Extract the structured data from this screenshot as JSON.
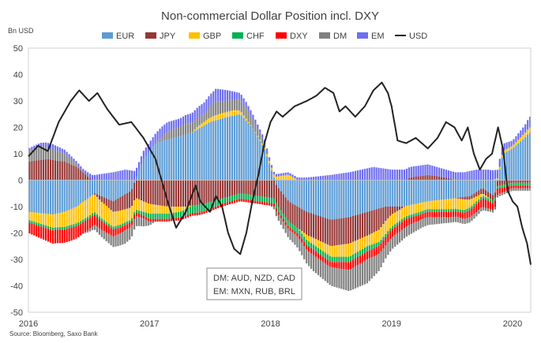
{
  "chart_data": {
    "type": "bar",
    "stacked": true,
    "title": "Non-commercial Dollar Position incl. DXY",
    "ylabel": "Bn USD",
    "xlabel": "",
    "ylim": [
      -50,
      50
    ],
    "yticks": [
      -50,
      -40,
      -30,
      -20,
      -10,
      0,
      10,
      20,
      30,
      40,
      50
    ],
    "xlim": [
      2016.0,
      2020.15
    ],
    "xticks": [
      "2016",
      "2017",
      "2018",
      "2019",
      "2020"
    ],
    "grid": false,
    "legend": "top",
    "source": "Source: Bloomberg, Saxo Bank",
    "annotation": [
      "DM: AUD, NZD, CAD",
      "EM: MXN, RUB, BRL"
    ],
    "series": [
      {
        "name": "EUR",
        "type": "bar",
        "color": "#5B9BD5",
        "keyframes": [
          [
            2016.0,
            -12
          ],
          [
            2016.2,
            -13
          ],
          [
            2016.3,
            -12
          ],
          [
            2016.4,
            -10
          ],
          [
            2016.55,
            -5
          ],
          [
            2016.7,
            -8
          ],
          [
            2016.85,
            -4
          ],
          [
            2016.95,
            8
          ],
          [
            2017.05,
            14
          ],
          [
            2017.2,
            16
          ],
          [
            2017.35,
            18
          ],
          [
            2017.5,
            22
          ],
          [
            2017.65,
            24
          ],
          [
            2017.75,
            25
          ],
          [
            2017.85,
            20
          ],
          [
            2017.95,
            12
          ],
          [
            2018.05,
            -2
          ],
          [
            2018.15,
            -8
          ],
          [
            2018.3,
            -12
          ],
          [
            2018.5,
            -15
          ],
          [
            2018.65,
            -14
          ],
          [
            2018.8,
            -12
          ],
          [
            2018.95,
            -10
          ],
          [
            2019.1,
            -10
          ],
          [
            2019.3,
            -8
          ],
          [
            2019.5,
            -7
          ],
          [
            2019.65,
            -6
          ],
          [
            2019.75,
            -3
          ],
          [
            2019.85,
            -6
          ],
          [
            2019.92,
            10
          ],
          [
            2020.0,
            12
          ],
          [
            2020.1,
            16
          ],
          [
            2020.14,
            18
          ]
        ]
      },
      {
        "name": "JPY",
        "type": "bar",
        "color": "#953735",
        "keyframes": [
          [
            2016.0,
            7
          ],
          [
            2016.15,
            8
          ],
          [
            2016.3,
            7
          ],
          [
            2016.4,
            5
          ],
          [
            2016.5,
            1
          ],
          [
            2016.6,
            -2
          ],
          [
            2016.75,
            -5
          ],
          [
            2016.9,
            -7
          ],
          [
            2017.0,
            -9
          ],
          [
            2017.15,
            -10
          ],
          [
            2017.3,
            -10
          ],
          [
            2017.45,
            -9
          ],
          [
            2017.6,
            -7
          ],
          [
            2017.75,
            -5
          ],
          [
            2017.9,
            -6
          ],
          [
            2018.05,
            -7
          ],
          [
            2018.2,
            -8
          ],
          [
            2018.35,
            -9
          ],
          [
            2018.5,
            -10
          ],
          [
            2018.65,
            -10
          ],
          [
            2018.8,
            -9
          ],
          [
            2018.9,
            -8
          ],
          [
            2019.0,
            -3
          ],
          [
            2019.15,
            1
          ],
          [
            2019.3,
            2
          ],
          [
            2019.45,
            1
          ],
          [
            2019.6,
            -1
          ],
          [
            2019.75,
            -2
          ],
          [
            2019.9,
            -2
          ],
          [
            2020.0,
            -1
          ],
          [
            2020.14,
            -1
          ]
        ]
      },
      {
        "name": "GBP",
        "type": "bar",
        "color": "#FFC000",
        "keyframes": [
          [
            2016.0,
            -3
          ],
          [
            2016.2,
            -5
          ],
          [
            2016.35,
            -6
          ],
          [
            2016.5,
            -7
          ],
          [
            2016.65,
            -6
          ],
          [
            2016.8,
            -5
          ],
          [
            2016.95,
            -4
          ],
          [
            2017.1,
            -3
          ],
          [
            2017.25,
            -2
          ],
          [
            2017.4,
            1
          ],
          [
            2017.55,
            2
          ],
          [
            2017.7,
            2
          ],
          [
            2017.85,
            0
          ],
          [
            2018.0,
            1
          ],
          [
            2018.15,
            2
          ],
          [
            2018.3,
            -2
          ],
          [
            2018.5,
            -4
          ],
          [
            2018.65,
            -5
          ],
          [
            2018.8,
            -4
          ],
          [
            2018.95,
            -5
          ],
          [
            2019.1,
            -4
          ],
          [
            2019.3,
            -3
          ],
          [
            2019.5,
            -4
          ],
          [
            2019.6,
            -4
          ],
          [
            2019.75,
            -1
          ],
          [
            2019.9,
            1
          ],
          [
            2020.0,
            1
          ],
          [
            2020.14,
            2
          ]
        ]
      },
      {
        "name": "CHF",
        "type": "bar",
        "color": "#00B050",
        "keyframes": [
          [
            2016.0,
            -1
          ],
          [
            2016.3,
            -1
          ],
          [
            2016.5,
            -1
          ],
          [
            2016.7,
            -1
          ],
          [
            2016.9,
            -1
          ],
          [
            2017.0,
            -2
          ],
          [
            2017.2,
            -2
          ],
          [
            2017.4,
            -3
          ],
          [
            2017.6,
            -2
          ],
          [
            2017.75,
            -2
          ],
          [
            2017.9,
            -2
          ],
          [
            2018.05,
            -2
          ],
          [
            2018.2,
            -2
          ],
          [
            2018.4,
            -2
          ],
          [
            2018.6,
            -2
          ],
          [
            2018.8,
            -2
          ],
          [
            2019.0,
            -1
          ],
          [
            2019.2,
            -1
          ],
          [
            2019.4,
            -1
          ],
          [
            2019.6,
            -1
          ],
          [
            2019.8,
            -1
          ],
          [
            2020.0,
            -1
          ],
          [
            2020.14,
            -1
          ]
        ]
      },
      {
        "name": "DXY",
        "type": "bar",
        "color": "#FF0000",
        "keyframes": [
          [
            2016.0,
            -4
          ],
          [
            2016.2,
            -5
          ],
          [
            2016.35,
            -5
          ],
          [
            2016.5,
            -4
          ],
          [
            2016.65,
            -3
          ],
          [
            2016.8,
            -2
          ],
          [
            2016.95,
            -1
          ],
          [
            2017.1,
            -1
          ],
          [
            2017.3,
            -1
          ],
          [
            2017.5,
            -1
          ],
          [
            2017.7,
            -1
          ],
          [
            2017.9,
            -1
          ],
          [
            2018.05,
            -1
          ],
          [
            2018.2,
            -1
          ],
          [
            2018.35,
            -2
          ],
          [
            2018.5,
            -2
          ],
          [
            2018.65,
            -3
          ],
          [
            2018.8,
            -3
          ],
          [
            2018.95,
            -3
          ],
          [
            2019.1,
            -3
          ],
          [
            2019.25,
            -2
          ],
          [
            2019.4,
            -2
          ],
          [
            2019.55,
            -2
          ],
          [
            2019.7,
            -3
          ],
          [
            2019.8,
            -3
          ],
          [
            2019.9,
            -2
          ],
          [
            2020.0,
            -1
          ],
          [
            2020.14,
            -1
          ]
        ]
      },
      {
        "name": "DM",
        "type": "bar",
        "color": "#808080",
        "keyframes": [
          [
            2016.0,
            4
          ],
          [
            2016.1,
            5
          ],
          [
            2016.2,
            4
          ],
          [
            2016.3,
            3
          ],
          [
            2016.4,
            1
          ],
          [
            2016.55,
            -2
          ],
          [
            2016.7,
            -4
          ],
          [
            2016.8,
            -5
          ],
          [
            2016.95,
            -3
          ],
          [
            2017.05,
            0
          ],
          [
            2017.15,
            3
          ],
          [
            2017.3,
            4
          ],
          [
            2017.45,
            3
          ],
          [
            2017.55,
            5
          ],
          [
            2017.7,
            4
          ],
          [
            2017.8,
            4
          ],
          [
            2017.95,
            2
          ],
          [
            2018.05,
            -2
          ],
          [
            2018.2,
            -4
          ],
          [
            2018.35,
            -6
          ],
          [
            2018.5,
            -7
          ],
          [
            2018.65,
            -8
          ],
          [
            2018.8,
            -9
          ],
          [
            2018.95,
            -5
          ],
          [
            2019.1,
            -4
          ],
          [
            2019.3,
            -3
          ],
          [
            2019.5,
            -2
          ],
          [
            2019.65,
            -2
          ],
          [
            2019.8,
            -1
          ],
          [
            2019.95,
            -1
          ],
          [
            2020.05,
            -1
          ],
          [
            2020.14,
            -1
          ]
        ]
      },
      {
        "name": "EM",
        "type": "bar",
        "color": "#6E6EF0",
        "keyframes": [
          [
            2016.0,
            1
          ],
          [
            2016.2,
            2
          ],
          [
            2016.4,
            1
          ],
          [
            2016.55,
            2
          ],
          [
            2016.7,
            3
          ],
          [
            2016.8,
            4
          ],
          [
            2016.95,
            3
          ],
          [
            2017.1,
            4
          ],
          [
            2017.25,
            3
          ],
          [
            2017.4,
            4
          ],
          [
            2017.55,
            5
          ],
          [
            2017.7,
            3
          ],
          [
            2017.85,
            2
          ],
          [
            2017.95,
            1
          ],
          [
            2018.1,
            1
          ],
          [
            2018.3,
            1
          ],
          [
            2018.5,
            2
          ],
          [
            2018.65,
            3
          ],
          [
            2018.75,
            4
          ],
          [
            2018.85,
            5
          ],
          [
            2019.0,
            4
          ],
          [
            2019.15,
            4
          ],
          [
            2019.3,
            4
          ],
          [
            2019.45,
            3
          ],
          [
            2019.6,
            3
          ],
          [
            2019.7,
            4
          ],
          [
            2019.8,
            4
          ],
          [
            2019.9,
            3
          ],
          [
            2020.0,
            2
          ],
          [
            2020.1,
            3
          ],
          [
            2020.14,
            4
          ]
        ]
      },
      {
        "name": "USD",
        "type": "line",
        "color": "#222222",
        "keyframes": [
          [
            2016.0,
            9
          ],
          [
            2016.08,
            13
          ],
          [
            2016.16,
            11
          ],
          [
            2016.25,
            22
          ],
          [
            2016.35,
            30
          ],
          [
            2016.42,
            34
          ],
          [
            2016.5,
            30
          ],
          [
            2016.57,
            33
          ],
          [
            2016.65,
            27
          ],
          [
            2016.75,
            21
          ],
          [
            2016.85,
            22
          ],
          [
            2016.95,
            16
          ],
          [
            2017.0,
            12
          ],
          [
            2017.05,
            8
          ],
          [
            2017.1,
            0
          ],
          [
            2017.15,
            -8
          ],
          [
            2017.22,
            -18
          ],
          [
            2017.3,
            -12
          ],
          [
            2017.38,
            -2
          ],
          [
            2017.42,
            -8
          ],
          [
            2017.5,
            -12
          ],
          [
            2017.55,
            -6
          ],
          [
            2017.6,
            -10
          ],
          [
            2017.65,
            -20
          ],
          [
            2017.7,
            -26
          ],
          [
            2017.75,
            -28
          ],
          [
            2017.8,
            -20
          ],
          [
            2017.85,
            -8
          ],
          [
            2017.9,
            2
          ],
          [
            2017.95,
            14
          ],
          [
            2018.0,
            22
          ],
          [
            2018.05,
            26
          ],
          [
            2018.1,
            24
          ],
          [
            2018.2,
            28
          ],
          [
            2018.3,
            30
          ],
          [
            2018.38,
            32
          ],
          [
            2018.45,
            35
          ],
          [
            2018.52,
            33
          ],
          [
            2018.57,
            26
          ],
          [
            2018.62,
            28
          ],
          [
            2018.7,
            24
          ],
          [
            2018.78,
            28
          ],
          [
            2018.85,
            34
          ],
          [
            2018.92,
            37
          ],
          [
            2018.97,
            33
          ],
          [
            2019.0,
            28
          ],
          [
            2019.05,
            15
          ],
          [
            2019.12,
            14
          ],
          [
            2019.2,
            16
          ],
          [
            2019.3,
            12
          ],
          [
            2019.38,
            16
          ],
          [
            2019.45,
            22
          ],
          [
            2019.52,
            20
          ],
          [
            2019.58,
            15
          ],
          [
            2019.63,
            20
          ],
          [
            2019.68,
            10
          ],
          [
            2019.73,
            4
          ],
          [
            2019.78,
            8
          ],
          [
            2019.83,
            10
          ],
          [
            2019.88,
            20
          ],
          [
            2019.92,
            12
          ],
          [
            2019.96,
            -4
          ],
          [
            2020.0,
            -8
          ],
          [
            2020.04,
            -10
          ],
          [
            2020.08,
            -18
          ],
          [
            2020.12,
            -24
          ],
          [
            2020.15,
            -32
          ]
        ]
      }
    ]
  }
}
